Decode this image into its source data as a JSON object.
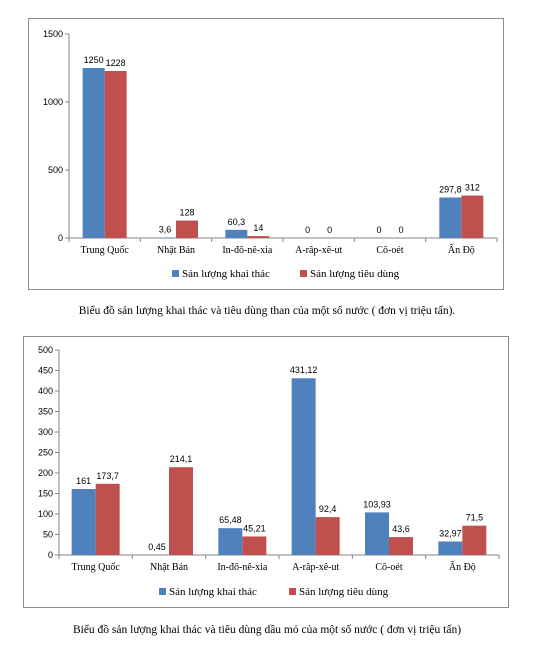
{
  "colors": {
    "series1": "#4f81bd",
    "series2": "#c0504d",
    "axis": "#868686",
    "text": "#000000"
  },
  "captions": [
    "Biểu đồ sản lượng khai thác và tiêu dùng than của một số nước ( đơn vị triệu tấn).",
    "Biểu đồ sản lượng khai thác và tiêu dùng dầu mỏ của một số nước ( đơn vị triệu tấn)"
  ],
  "chart_data": [
    {
      "type": "bar",
      "categories": [
        "Trung Quốc",
        "Nhật Bản",
        "In-đô-nê-xia",
        "A-râp-xê-ut",
        "Cô-oét",
        "Ấn Độ"
      ],
      "series": [
        {
          "name": "Sản lượng khai thác",
          "values": [
            1250,
            3.6,
            60.3,
            0,
            0,
            297.8
          ],
          "labels": [
            "1250",
            "3,6",
            "60,3",
            "0",
            "0",
            "297,8"
          ]
        },
        {
          "name": "Sản lượng tiêu dùng",
          "values": [
            1228,
            128,
            14,
            0,
            0,
            312
          ],
          "labels": [
            "1228",
            "128",
            "14",
            "0",
            "0",
            "312"
          ]
        }
      ],
      "ylim": [
        0,
        1500
      ],
      "yticks": [
        0,
        500,
        1000,
        1500
      ],
      "grid": false,
      "legend": "bottom"
    },
    {
      "type": "bar",
      "categories": [
        "Trung Quốc",
        "Nhật Bản",
        "In-đô-nê-xia",
        "A-râp-xê-ut",
        "Cô-oét",
        "Ấn Độ"
      ],
      "series": [
        {
          "name": "Sản lượng khai thác",
          "values": [
            161,
            0.45,
            65.48,
            431.12,
            103.93,
            32.97
          ],
          "labels": [
            "161",
            "0,45",
            "65,48",
            "431,12",
            "103,93",
            "32,97"
          ]
        },
        {
          "name": "Sản lượng tiêu dùng",
          "values": [
            173.7,
            214.1,
            45.21,
            92.4,
            43.6,
            71.5
          ],
          "labels": [
            "173,7",
            "214,1",
            "45,21",
            "92,4",
            "43,6",
            "71,5"
          ]
        }
      ],
      "ylim": [
        0,
        500
      ],
      "yticks": [
        0,
        50,
        100,
        150,
        200,
        250,
        300,
        350,
        400,
        450,
        500
      ],
      "grid": false,
      "legend": "bottom"
    }
  ]
}
